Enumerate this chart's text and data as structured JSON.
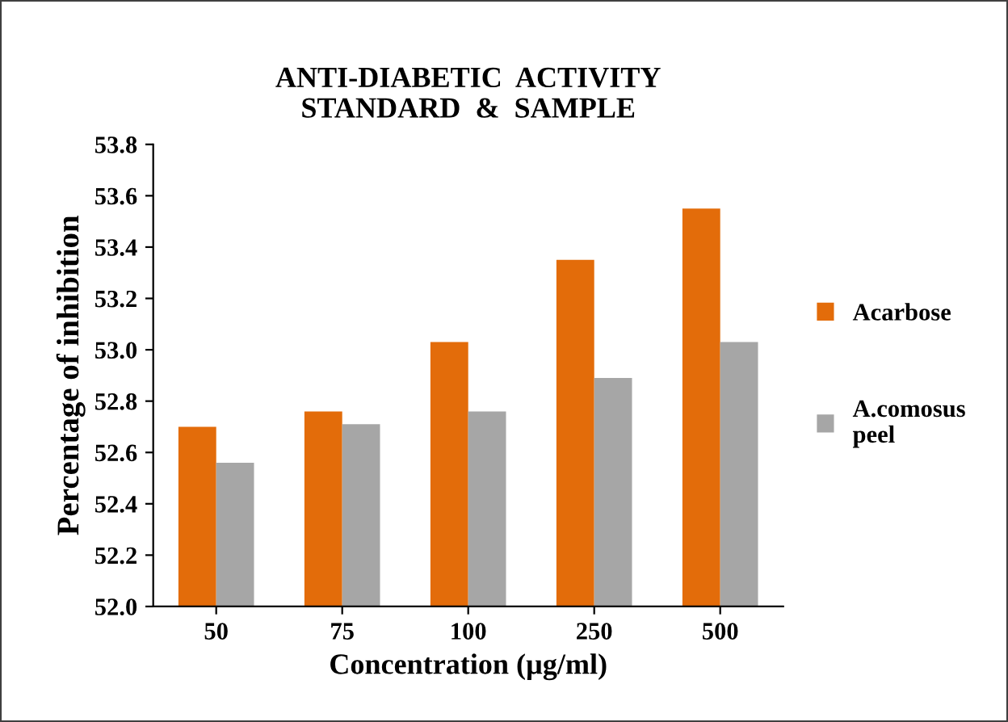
{
  "chart_data": {
    "type": "bar",
    "title": "ANTI-DIABETIC  ACTIVITY\nSTANDARD  &  SAMPLE",
    "xlabel": "Concentration (µg/ml)",
    "ylabel": "Percentage of inhibition",
    "categories": [
      "50",
      "75",
      "100",
      "250",
      "500"
    ],
    "series": [
      {
        "name": "Acarbose",
        "color": "#e36c0a",
        "values": [
          52.7,
          52.76,
          53.03,
          53.35,
          53.55
        ]
      },
      {
        "name": "A.comosus\npeel",
        "color": "#a6a6a6",
        "values": [
          52.56,
          52.71,
          52.76,
          52.89,
          53.03
        ]
      }
    ],
    "ylim": [
      52.0,
      53.8
    ],
    "yticks": [
      {
        "value": 52.0,
        "label": "52.0"
      },
      {
        "value": 52.2,
        "label": "52.2"
      },
      {
        "value": 52.4,
        "label": "52.4"
      },
      {
        "value": 52.6,
        "label": "52.6"
      },
      {
        "value": 52.8,
        "label": "52.8"
      },
      {
        "value": 53.0,
        "label": "53.0"
      },
      {
        "value": 53.2,
        "label": "53.2"
      },
      {
        "value": 53.4,
        "label": "53.4"
      },
      {
        "value": 53.6,
        "label": "53.6"
      },
      {
        "value": 53.8,
        "label": "53.8"
      }
    ],
    "grid": false,
    "legend": "right"
  }
}
